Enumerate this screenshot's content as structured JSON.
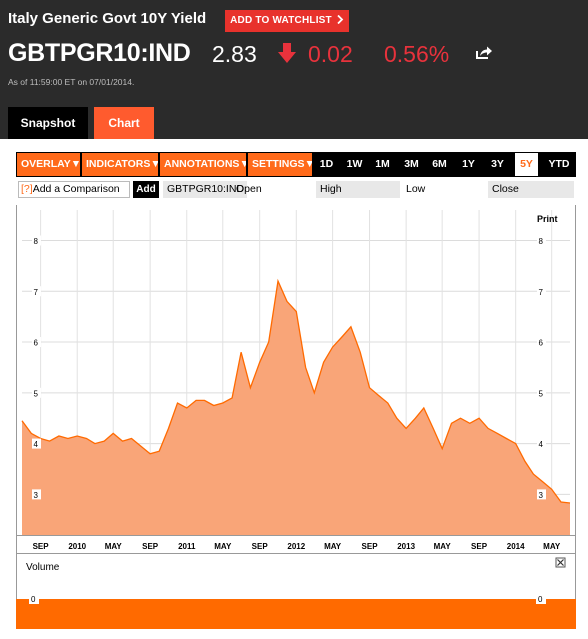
{
  "header": {
    "title": "Italy Generic Govt 10Y Yield",
    "watchlist_label": "ADD TO WATCHLIST",
    "ticker": "GBTPGR10:IND",
    "price": "2.83",
    "change": "0.02",
    "percent_change": "0.56%",
    "as_of": "As of 11:59:00 ET on 07/01/2014."
  },
  "tabs": [
    {
      "label": "Snapshot"
    },
    {
      "label": "Chart"
    }
  ],
  "toolbar": {
    "menus": [
      "OVERLAY",
      "INDICATORS",
      "ANNOTATIONS",
      "SETTINGS"
    ],
    "ranges": [
      "1D",
      "1W",
      "1M",
      "3M",
      "6M",
      "1Y",
      "3Y",
      "5Y",
      "YTD"
    ],
    "active_range": "5Y"
  },
  "compare": {
    "help": "[?]",
    "placeholder": "Add a Comparison",
    "add_label": "Add",
    "symbol": "GBTPGR10:IND",
    "fields": [
      "Open",
      "High",
      "Low",
      "Close"
    ]
  },
  "print_label": "Print",
  "volume_label": "Volume",
  "colors": {
    "accent": "#ff6a1a",
    "header_bg": "#2b2b2b",
    "down": "#e8323c",
    "area_fill": "#f9a578",
    "area_line": "#ff6a00"
  },
  "chart_data": {
    "type": "area",
    "y_ticks": [
      3,
      4,
      5,
      6,
      7,
      8
    ],
    "ylim": [
      2.2,
      8.6
    ],
    "xlim": [
      "2009-07-01",
      "2014-07-01"
    ],
    "x_ticks": [
      {
        "date": "2009-09-01",
        "label": "SEP"
      },
      {
        "date": "2010-01-01",
        "label": "2010"
      },
      {
        "date": "2010-05-01",
        "label": "MAY"
      },
      {
        "date": "2010-09-01",
        "label": "SEP"
      },
      {
        "date": "2011-01-01",
        "label": "2011"
      },
      {
        "date": "2011-05-01",
        "label": "MAY"
      },
      {
        "date": "2011-09-01",
        "label": "SEP"
      },
      {
        "date": "2012-01-01",
        "label": "2012"
      },
      {
        "date": "2012-05-01",
        "label": "MAY"
      },
      {
        "date": "2012-09-01",
        "label": "SEP"
      },
      {
        "date": "2013-01-01",
        "label": "2013"
      },
      {
        "date": "2013-05-01",
        "label": "MAY"
      },
      {
        "date": "2013-09-01",
        "label": "SEP"
      },
      {
        "date": "2014-01-01",
        "label": "2014"
      },
      {
        "date": "2014-05-01",
        "label": "MAY"
      }
    ],
    "series": [
      {
        "x": [
          "2009-07-01",
          "2009-08-01",
          "2009-09-01",
          "2009-10-01",
          "2009-11-01",
          "2009-12-01",
          "2010-01-01",
          "2010-02-01",
          "2010-03-01",
          "2010-04-01",
          "2010-05-01",
          "2010-06-01",
          "2010-07-01",
          "2010-08-01",
          "2010-09-01",
          "2010-10-01",
          "2010-11-01",
          "2010-12-01",
          "2011-01-01",
          "2011-02-01",
          "2011-03-01",
          "2011-04-01",
          "2011-05-01",
          "2011-06-01",
          "2011-07-01",
          "2011-08-01",
          "2011-09-01",
          "2011-10-01",
          "2011-11-01",
          "2011-12-01",
          "2012-01-01",
          "2012-02-01",
          "2012-03-01",
          "2012-04-01",
          "2012-05-01",
          "2012-06-01",
          "2012-07-01",
          "2012-08-01",
          "2012-09-01",
          "2012-10-01",
          "2012-11-01",
          "2012-12-01",
          "2013-01-01",
          "2013-02-01",
          "2013-03-01",
          "2013-04-01",
          "2013-05-01",
          "2013-06-01",
          "2013-07-01",
          "2013-08-01",
          "2013-09-01",
          "2013-10-01",
          "2013-11-01",
          "2013-12-01",
          "2014-01-01",
          "2014-02-01",
          "2014-03-01",
          "2014-04-01",
          "2014-05-01",
          "2014-06-01",
          "2014-07-01"
        ],
        "y": [
          4.45,
          4.2,
          4.1,
          4.05,
          4.15,
          4.1,
          4.15,
          4.1,
          4.0,
          4.05,
          4.2,
          4.05,
          4.1,
          3.95,
          3.8,
          3.85,
          4.3,
          4.8,
          4.7,
          4.85,
          4.85,
          4.75,
          4.8,
          4.9,
          5.8,
          5.1,
          5.6,
          6.0,
          7.2,
          6.8,
          6.6,
          5.5,
          5.0,
          5.6,
          5.9,
          6.1,
          6.3,
          5.8,
          5.1,
          4.95,
          4.8,
          4.5,
          4.3,
          4.5,
          4.7,
          4.3,
          3.9,
          4.4,
          4.5,
          4.4,
          4.5,
          4.3,
          4.2,
          4.1,
          4.0,
          3.65,
          3.4,
          3.25,
          3.1,
          2.85,
          2.83
        ]
      }
    ]
  }
}
